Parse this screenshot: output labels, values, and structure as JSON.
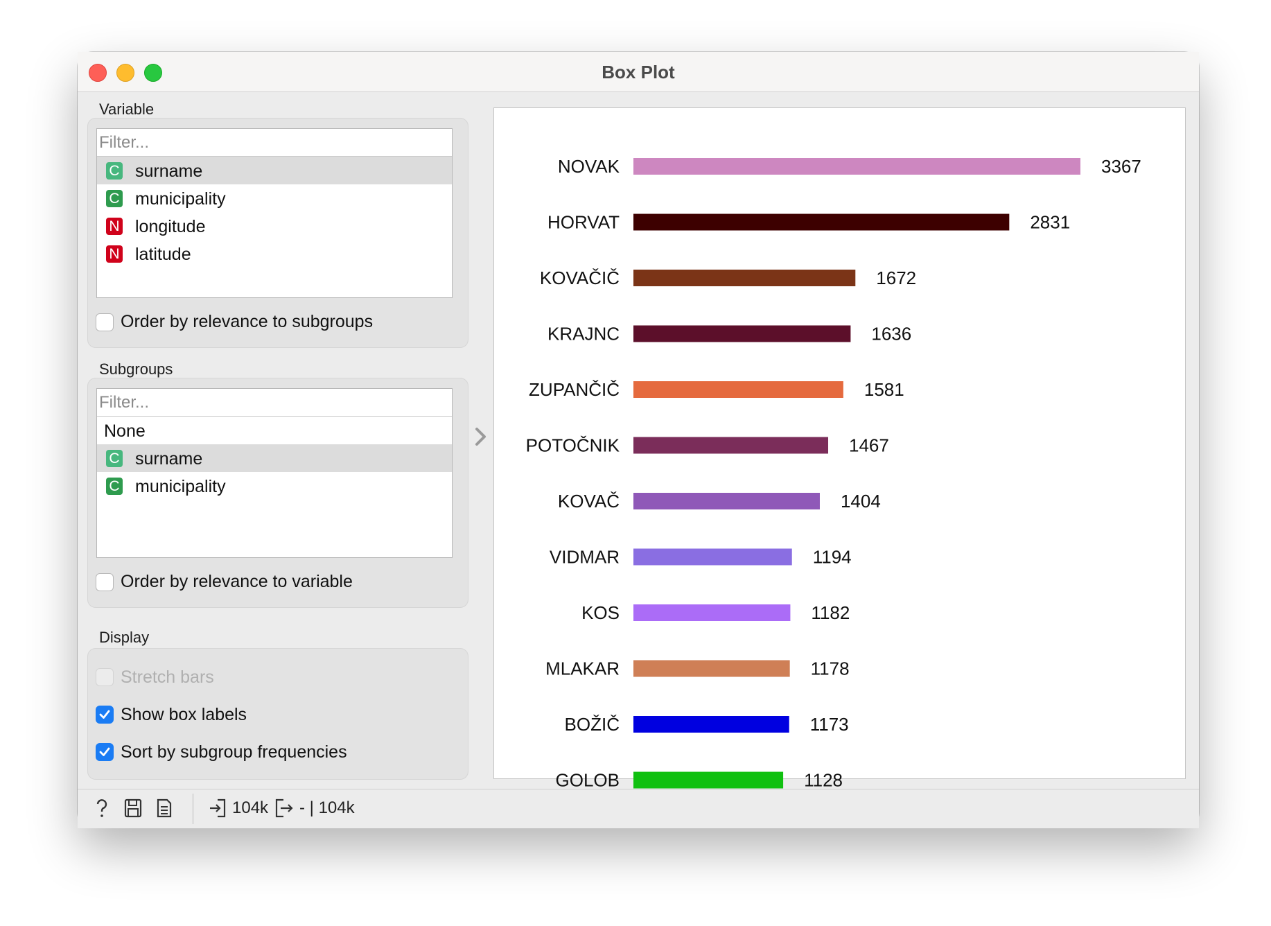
{
  "window": {
    "title": "Box Plot"
  },
  "variable": {
    "section_label": "Variable",
    "filter_placeholder": "Filter...",
    "items": [
      {
        "type": "C",
        "label": "surname",
        "selected": true
      },
      {
        "type": "C",
        "label": "municipality",
        "selected": false
      },
      {
        "type": "N",
        "label": "longitude",
        "selected": false
      },
      {
        "type": "N",
        "label": "latitude",
        "selected": false
      }
    ],
    "order_label": "Order by relevance to subgroups",
    "order_checked": false
  },
  "subgroups": {
    "section_label": "Subgroups",
    "filter_placeholder": "Filter...",
    "none_label": "None",
    "items": [
      {
        "type": "C",
        "label": "surname",
        "selected": true
      },
      {
        "type": "C",
        "label": "municipality",
        "selected": false
      }
    ],
    "order_label": "Order by relevance to variable",
    "order_checked": false
  },
  "display": {
    "section_label": "Display",
    "stretch_label": "Stretch bars",
    "stretch_checked": false,
    "stretch_enabled": false,
    "show_labels_label": "Show box labels",
    "show_labels_checked": true,
    "sort_label": "Sort by subgroup frequencies",
    "sort_checked": true
  },
  "chart_data": {
    "type": "bar",
    "orientation": "horizontal",
    "categories": [
      "NOVAK",
      "HORVAT",
      "KOVAČIČ",
      "KRAJNC",
      "ZUPANČIČ",
      "POTOČNIK",
      "KOVAČ",
      "VIDMAR",
      "KOS",
      "MLAKAR",
      "BOŽIČ",
      "GOLOB"
    ],
    "values": [
      3367,
      2831,
      1672,
      1636,
      1581,
      1467,
      1404,
      1194,
      1182,
      1178,
      1173,
      1128
    ],
    "colors": [
      "#cd87c0",
      "#3d0000",
      "#7b3417",
      "#5c0f2a",
      "#e56a3e",
      "#7b2d5a",
      "#8f58b8",
      "#8a6ee2",
      "#ab6cf7",
      "#cf7f56",
      "#0000e0",
      "#10c010"
    ],
    "value_labels_shown": true,
    "xlim": [
      0,
      3367
    ]
  },
  "status": {
    "input_count": "104k",
    "output_text": "- | 104k"
  }
}
